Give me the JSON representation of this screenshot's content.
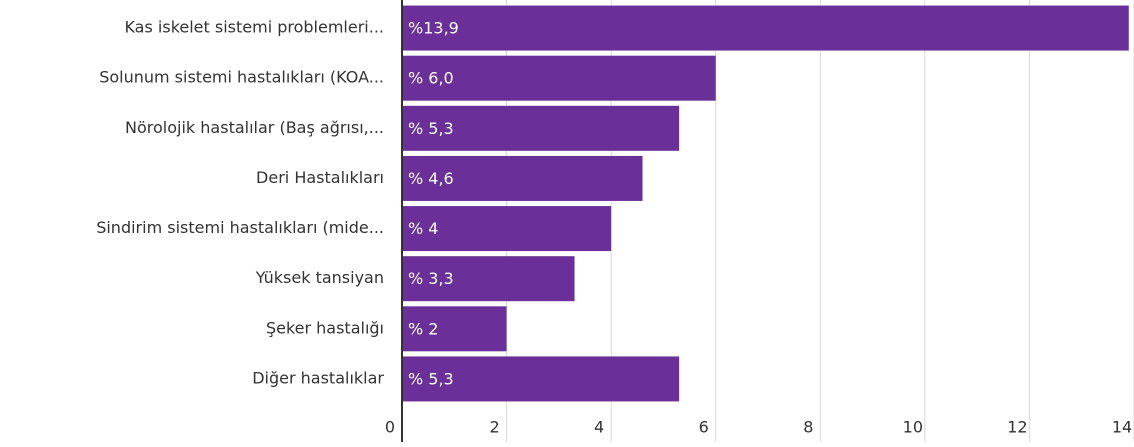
{
  "chart_data": {
    "type": "hbar",
    "categories": [
      "Kas iskelet sistemi problemleri...",
      "Solunum sistemi hastalıkları (KOA...",
      "Nörolojik hastalılar (Baş ağrısı,...",
      "Deri Hastalıkları",
      "Sindirim sistemi hastalıkları (mide...",
      "Yüksek tansiyan",
      "Şeker hastalığı",
      "Diğer hastalıklar"
    ],
    "values": [
      13.9,
      6.0,
      5.3,
      4.6,
      4,
      3.3,
      2,
      5.3
    ],
    "value_labels": [
      "%13,9",
      "% 6,0",
      "% 5,3",
      "% 4,6",
      "% 4",
      "% 3,3",
      "% 2",
      "% 5,3"
    ],
    "color": "#6a2f98",
    "xlim": [
      0,
      14
    ],
    "xticks": [
      0,
      2,
      4,
      6,
      8,
      10,
      12,
      14
    ],
    "grid": true
  }
}
